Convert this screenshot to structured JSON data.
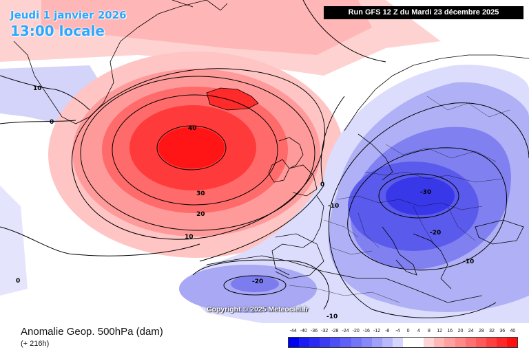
{
  "header": {
    "date_text": "Jeudi 1 janvier 2026",
    "time_text": "13:00 locale",
    "run_text": "Run GFS 12 Z du Mardi 23 décembre 2025"
  },
  "map": {
    "copyright": "Copyright © 2025 Meteociel.fr",
    "contour_labels": {
      "greenland_10": "10",
      "greenland_0": "0",
      "high_40": "40",
      "high_30": "30",
      "high_20": "20",
      "high_10": "10",
      "ireland_0": "0",
      "france_m10": "-10",
      "europe_m30": "-30",
      "balkan_m20": "-20",
      "turkey_m10": "-10",
      "atlantic_m20": "-20",
      "africa_m10": "-10",
      "west_0": "0"
    },
    "colors": {
      "positive_anomaly": "#ff1a1a",
      "negative_anomaly": "#2222ee",
      "neutral": "#ffffff"
    }
  },
  "footer": {
    "title": "Anomalie Geop. 500hPa (dam)",
    "subtitle": "(+ 216h)"
  },
  "legend": {
    "labels": [
      "-44",
      "-40",
      "-36",
      "-32",
      "-28",
      "-24",
      "-20",
      "-16",
      "-12",
      "-8",
      "-4",
      "0",
      "4",
      "8",
      "12",
      "16",
      "20",
      "24",
      "28",
      "32",
      "36",
      "40"
    ],
    "colors": [
      "#0000f0",
      "#1a1af2",
      "#2a2af4",
      "#3c3cf5",
      "#4e4ef6",
      "#6060f7",
      "#7474f8",
      "#8888f9",
      "#a0a0fa",
      "#b8b8fc",
      "#d6d6fd",
      "#ffffff",
      "#ffffff",
      "#ffd6d6",
      "#ffb8b8",
      "#ffa0a0",
      "#ff8888",
      "#ff7070",
      "#ff5a5a",
      "#ff4040",
      "#ff2828",
      "#ff1010"
    ]
  }
}
